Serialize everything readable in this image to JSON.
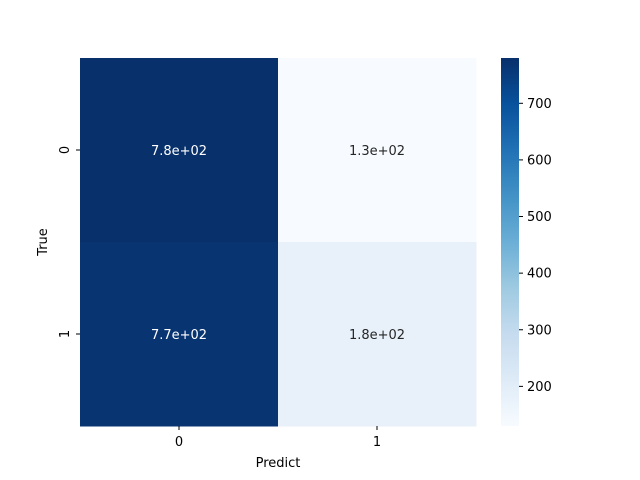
{
  "chart_data": {
    "type": "heatmap",
    "title": "",
    "xlabel": "Predict",
    "ylabel": "True",
    "x_categories": [
      "0",
      "1"
    ],
    "y_categories": [
      "0",
      "1"
    ],
    "values": [
      [
        780,
        130
      ],
      [
        770,
        180
      ]
    ],
    "value_labels": [
      [
        "7.8e+02",
        "1.3e+02"
      ],
      [
        "7.7e+02",
        "1.8e+02"
      ]
    ],
    "colormap": "Blues",
    "colorbar": {
      "range": [
        130,
        780
      ],
      "ticks": [
        200,
        300,
        400,
        500,
        600,
        700
      ],
      "tick_labels": [
        "200",
        "300",
        "400",
        "500",
        "600",
        "700"
      ]
    },
    "colors": {
      "low": "#f7fbff",
      "high": "#08306b",
      "text_on_dark": "#ffffff",
      "text_on_light": "#262626"
    }
  }
}
